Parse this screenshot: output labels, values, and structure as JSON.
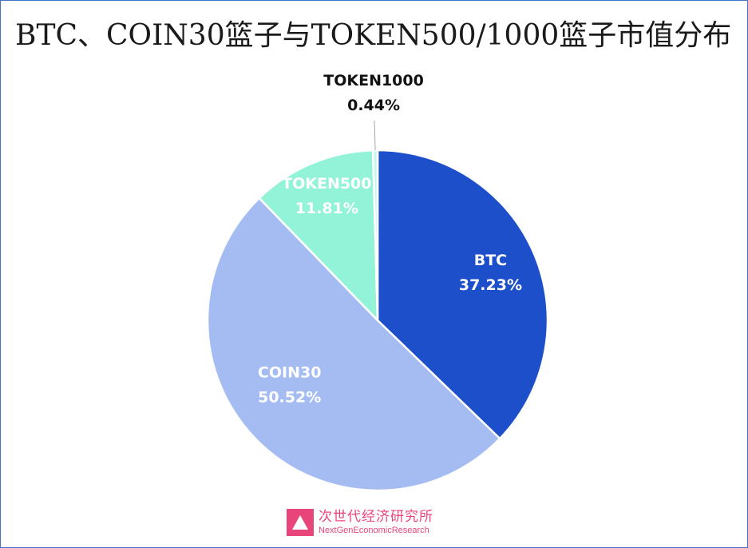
{
  "chart_data": {
    "type": "pie",
    "title": "BTC、COIN30篮子与TOKEN500/1000篮子市值分布",
    "slices": [
      {
        "name": "BTC",
        "value": 37.23,
        "label": "37.23%",
        "color": "#1c4fc9",
        "text_color": "#ffffff"
      },
      {
        "name": "COIN30",
        "value": 50.52,
        "label": "50.52%",
        "color": "#a4bcf2",
        "text_color": "#ffffff"
      },
      {
        "name": "TOKEN500",
        "value": 11.81,
        "label": "11.81%",
        "color": "#93f3d9",
        "text_color": "#ffffff"
      },
      {
        "name": "TOKEN1000",
        "value": 0.44,
        "label": "0.44%",
        "color": "#c9f7e7",
        "text_color": "#111111"
      }
    ]
  },
  "watermark": {
    "name_cn": "次世代经济研究所",
    "name_en": "NextGenEconomicResearch",
    "color": "#e8457a"
  }
}
